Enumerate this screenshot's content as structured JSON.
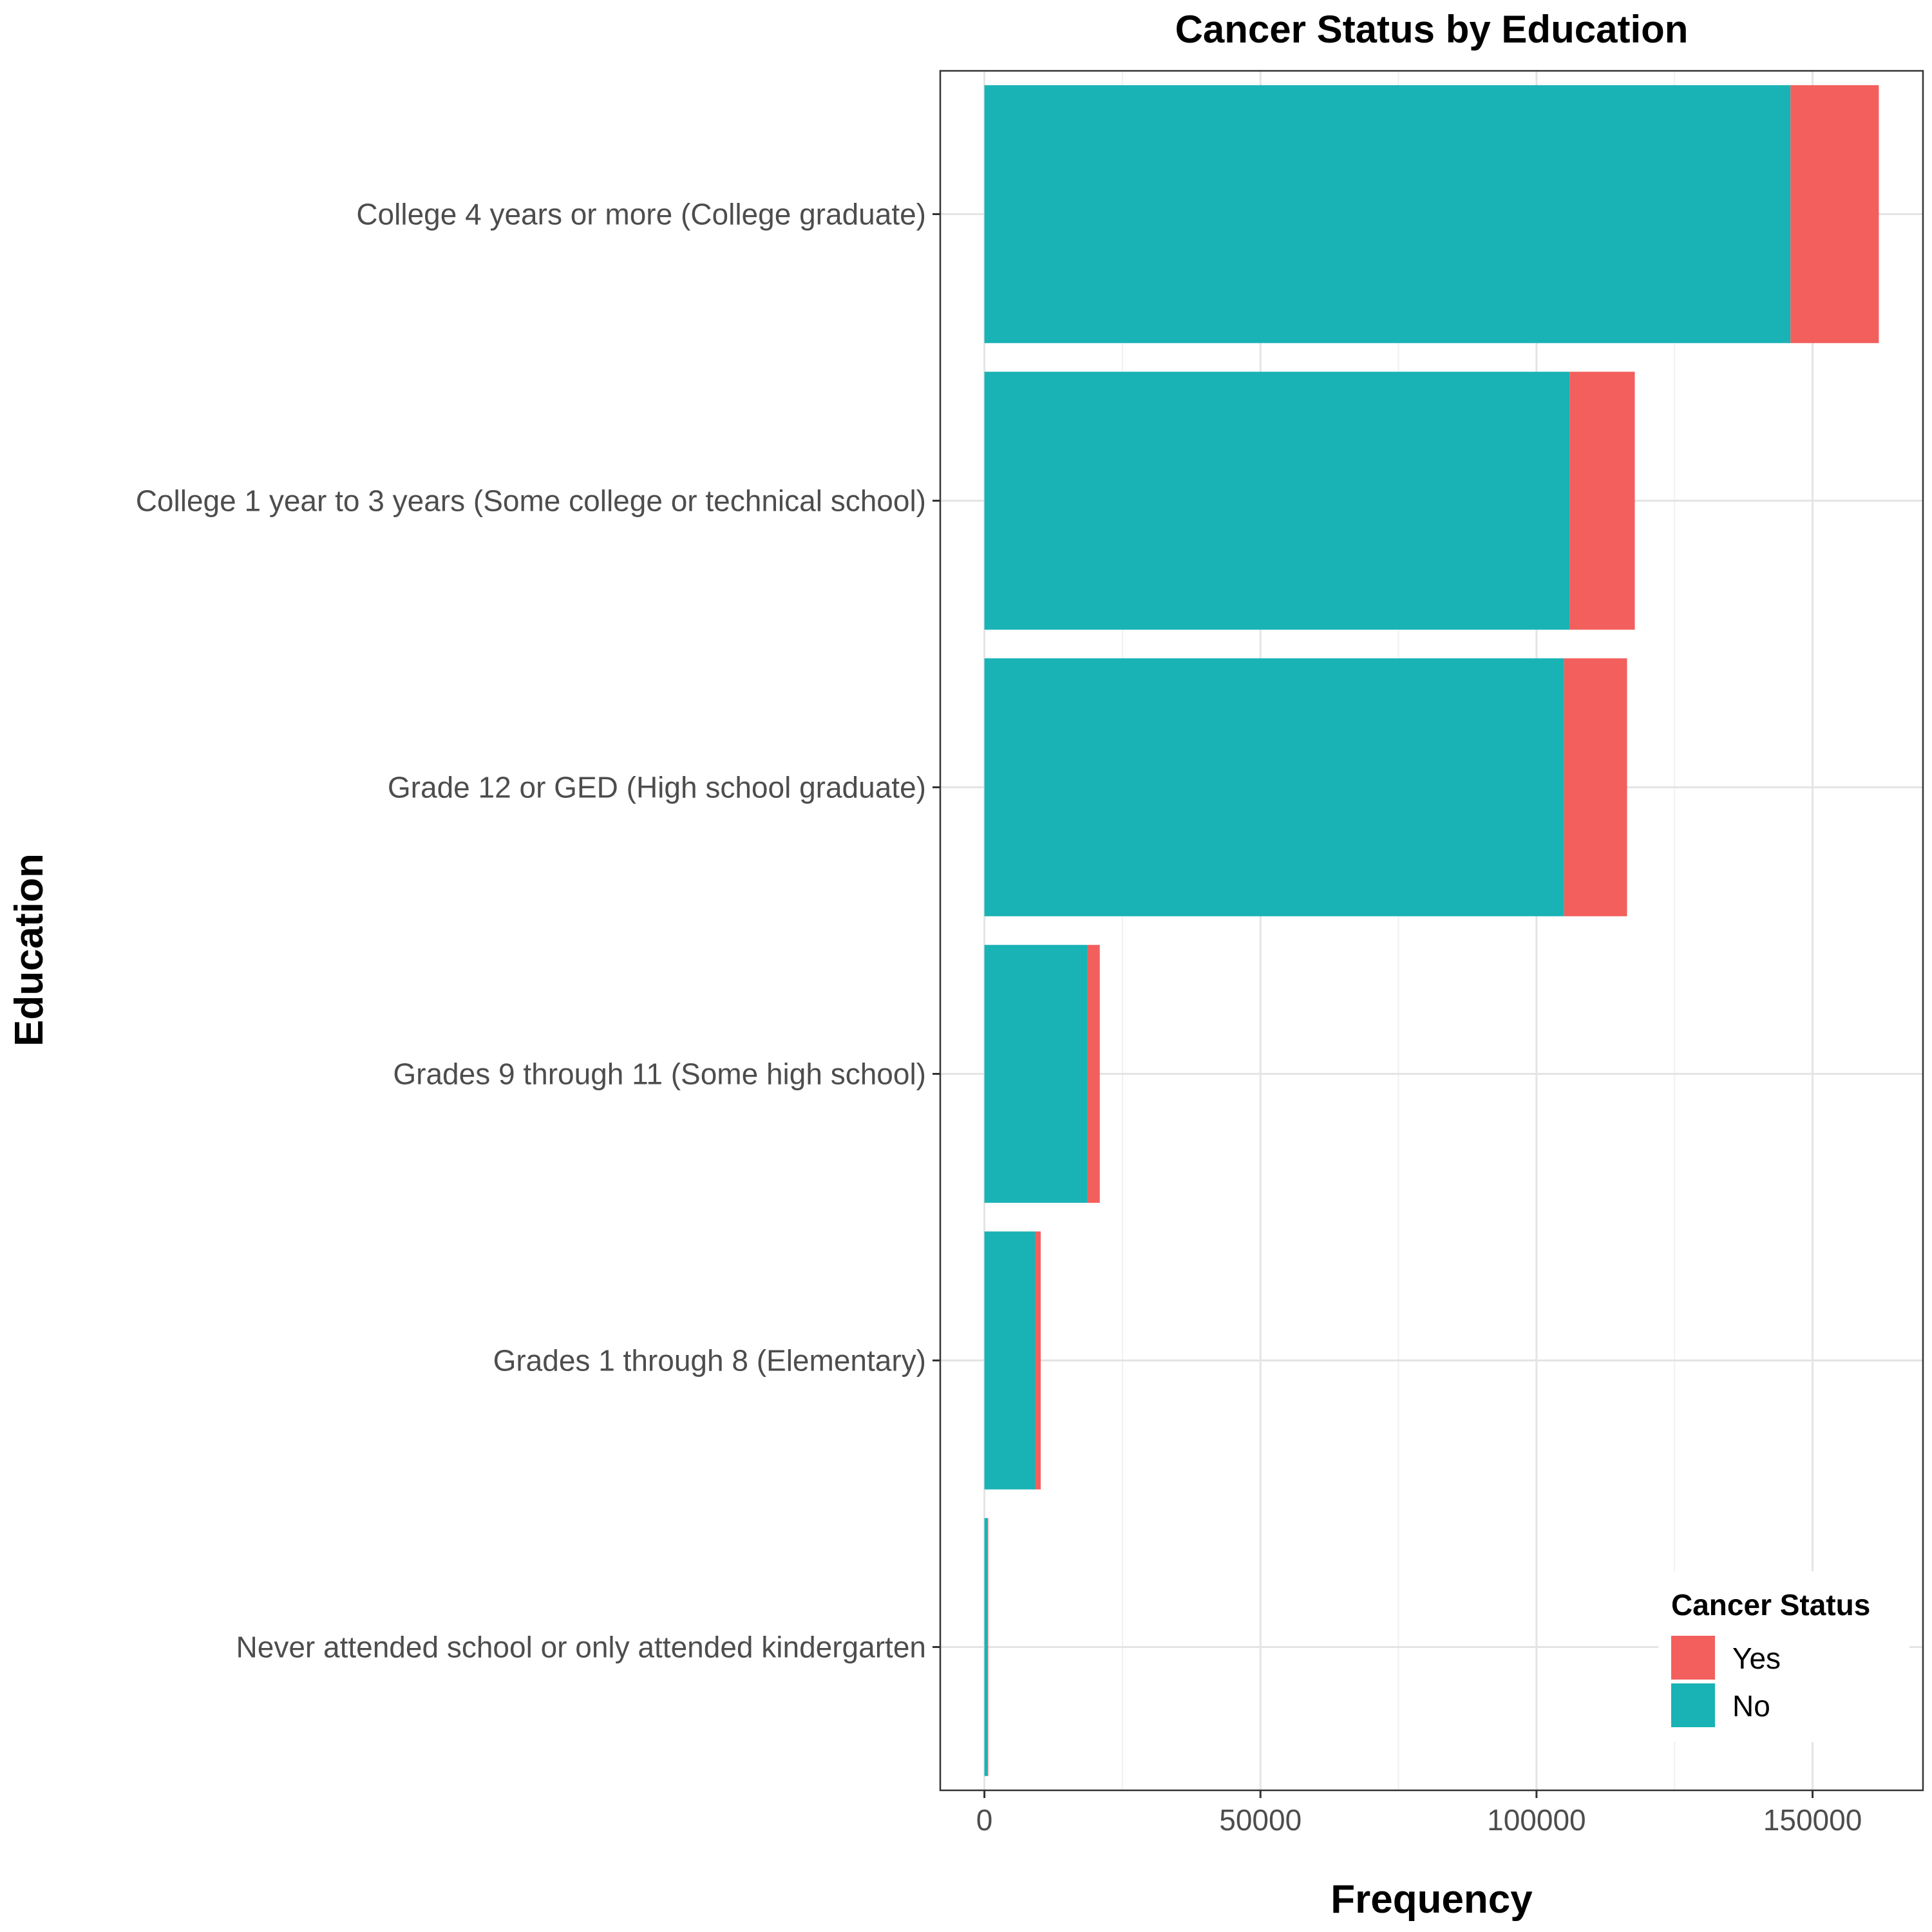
{
  "chart_data": {
    "type": "bar",
    "orientation": "horizontal",
    "stacked": true,
    "title": "Cancer Status by Education",
    "xlabel": "Frequency",
    "ylabel": "Education",
    "categories": [
      "College 4 years or more (College graduate)",
      "College 1 year to 3 years (Some college or technical school)",
      "Grade 12 or GED (High school graduate)",
      "Grades 9 through 11 (Some high school)",
      "Grades 1 through 8 (Elementary)",
      "Never attended school or only attended kindergarten"
    ],
    "series": [
      {
        "name": "No",
        "color": "#19B2B5",
        "values": [
          146000,
          106000,
          105000,
          18700,
          9200,
          600
        ]
      },
      {
        "name": "Yes",
        "color": "#F25F5C",
        "values": [
          16000,
          11800,
          11400,
          2200,
          1000,
          100
        ]
      }
    ],
    "xticks": [
      "0",
      "50000",
      "100000",
      "150000"
    ],
    "xtick_values": [
      0,
      50000,
      100000,
      150000
    ],
    "xlim": [
      -8000,
      170000
    ],
    "grid": true,
    "legend": {
      "title": "Cancer Status",
      "position": "bottom-right",
      "items": [
        {
          "label": "Yes",
          "color": "#F25F5C"
        },
        {
          "label": "No",
          "color": "#19B2B5"
        }
      ]
    }
  }
}
